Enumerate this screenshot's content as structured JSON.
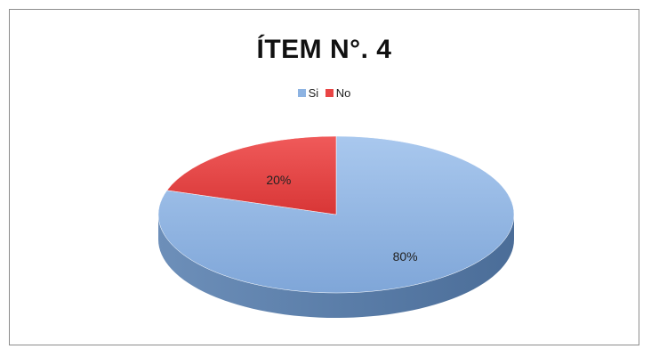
{
  "chart_data": {
    "type": "pie",
    "title": "ÍTEM N°. 4",
    "categories": [
      "Si",
      "No"
    ],
    "values": [
      80,
      20
    ],
    "data_labels": [
      "80%",
      "20%"
    ],
    "colors": [
      "#8db3e2",
      "#e94545"
    ],
    "legend_position": "top",
    "style": "3d"
  }
}
